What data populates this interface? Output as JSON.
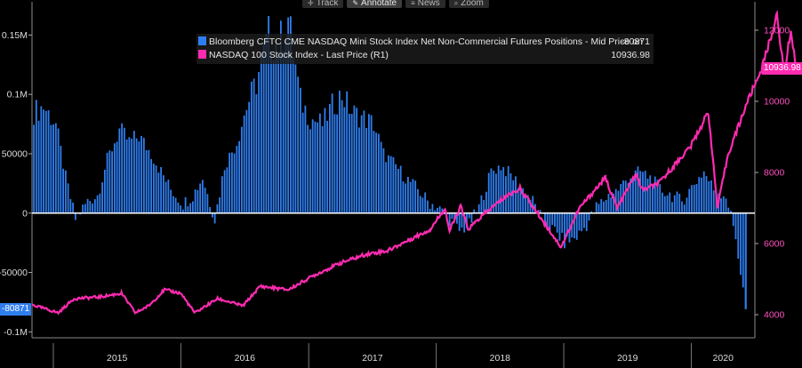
{
  "toolbar": {
    "items": [
      {
        "label": "Track",
        "icon": "crosshair-icon"
      },
      {
        "label": "Annotate",
        "icon": "pencil-icon",
        "active": true
      },
      {
        "label": "News",
        "icon": "news-icon"
      },
      {
        "label": "Zoom",
        "icon": "magnifier-icon"
      }
    ]
  },
  "colors": {
    "background": "#000000",
    "bars": "#2f7ef0",
    "line": "#ff2bb1",
    "zero_line": "#ffffff",
    "axis_text": "#dddddd",
    "right_axis_text": "#ff4fc0"
  },
  "legend": {
    "series1_label": "Bloomberg CFTC CME NASDAQ Mini Stock Index Net Non-Commercial Futures Positions - Mid Price on",
    "series1_value": "-80871",
    "series2_label": "NASDAQ 100 Stock Index - Last Price (R1)",
    "series2_value": "10936.98"
  },
  "tags": {
    "left_last": "-80871",
    "right_last": "10936.98"
  },
  "chart_data": {
    "type": "bar",
    "x_range": [
      "2014-11",
      "2020-07"
    ],
    "x_tick_labels": [
      "2015",
      "2016",
      "2017",
      "2018",
      "2019",
      "2020"
    ],
    "left_axis": {
      "ticks": [
        150000,
        100000,
        50000,
        0,
        -50000,
        -100000
      ],
      "tick_labels": [
        "0.15M",
        "0.1M",
        "50000",
        "0",
        "-50000",
        "-0.1M"
      ],
      "range": [
        -105000,
        178000
      ]
    },
    "right_axis": {
      "ticks": [
        12000,
        10000,
        8000,
        6000,
        4000
      ],
      "tick_labels": [
        "12000",
        "10000",
        "8000",
        "6000",
        "4000"
      ],
      "range": [
        3350,
        12800
      ]
    },
    "series": [
      {
        "name": "Bloomberg CFTC CME NASDAQ Mini Stock Index Net Non-Commercial Futures Positions - Mid Price on",
        "type": "bar",
        "axis": "left",
        "points": [
          [
            "2014-11-04",
            85000
          ],
          [
            "2014-12-02",
            90000
          ],
          [
            "2015-01-06",
            75000
          ],
          [
            "2015-02-03",
            30000
          ],
          [
            "2015-03-03",
            -5000
          ],
          [
            "2015-04-07",
            10000
          ],
          [
            "2015-05-05",
            15000
          ],
          [
            "2015-06-02",
            45000
          ],
          [
            "2015-07-07",
            70000
          ],
          [
            "2015-08-04",
            60000
          ],
          [
            "2015-09-01",
            65000
          ],
          [
            "2015-10-06",
            50000
          ],
          [
            "2015-11-03",
            35000
          ],
          [
            "2015-12-01",
            20000
          ],
          [
            "2016-01-05",
            8000
          ],
          [
            "2016-02-02",
            15000
          ],
          [
            "2016-03-01",
            30000
          ],
          [
            "2016-04-05",
            -5000
          ],
          [
            "2016-05-03",
            40000
          ],
          [
            "2016-06-07",
            60000
          ],
          [
            "2016-07-05",
            90000
          ],
          [
            "2016-08-02",
            110000
          ],
          [
            "2016-09-06",
            150000
          ],
          [
            "2016-10-04",
            140000
          ],
          [
            "2016-11-01",
            165000
          ],
          [
            "2016-12-06",
            95000
          ],
          [
            "2017-01-03",
            80000
          ],
          [
            "2017-02-07",
            75000
          ],
          [
            "2017-03-07",
            90000
          ],
          [
            "2017-04-04",
            100000
          ],
          [
            "2017-05-02",
            85000
          ],
          [
            "2017-06-06",
            80000
          ],
          [
            "2017-07-04",
            75000
          ],
          [
            "2017-08-01",
            50000
          ],
          [
            "2017-09-05",
            40000
          ],
          [
            "2017-10-03",
            30000
          ],
          [
            "2017-11-07",
            20000
          ],
          [
            "2017-12-05",
            10000
          ],
          [
            "2018-01-02",
            5000
          ],
          [
            "2018-02-06",
            -5000
          ],
          [
            "2018-03-06",
            -15000
          ],
          [
            "2018-04-03",
            -10000
          ],
          [
            "2018-05-01",
            5000
          ],
          [
            "2018-06-05",
            35000
          ],
          [
            "2018-07-03",
            40000
          ],
          [
            "2018-08-07",
            30000
          ],
          [
            "2018-09-04",
            20000
          ],
          [
            "2018-10-02",
            10000
          ],
          [
            "2018-11-06",
            -10000
          ],
          [
            "2018-12-04",
            -15000
          ],
          [
            "2019-01-01",
            -25000
          ],
          [
            "2019-02-05",
            -20000
          ],
          [
            "2019-03-05",
            -10000
          ],
          [
            "2019-04-02",
            5000
          ],
          [
            "2019-05-07",
            15000
          ],
          [
            "2019-06-04",
            20000
          ],
          [
            "2019-07-02",
            30000
          ],
          [
            "2019-08-06",
            35000
          ],
          [
            "2019-09-03",
            30000
          ],
          [
            "2019-10-01",
            20000
          ],
          [
            "2019-11-05",
            15000
          ],
          [
            "2019-12-03",
            10000
          ],
          [
            "2020-01-07",
            25000
          ],
          [
            "2020-02-04",
            35000
          ],
          [
            "2020-03-03",
            20000
          ],
          [
            "2020-04-07",
            15000
          ],
          [
            "2020-05-05",
            -20000
          ],
          [
            "2020-06-02",
            -80871
          ]
        ]
      },
      {
        "name": "NASDAQ 100 Stock Index - Last Price (R1)",
        "type": "line",
        "axis": "right",
        "points": [
          [
            "2014-11-01",
            4280
          ],
          [
            "2015-01-15",
            4050
          ],
          [
            "2015-03-01",
            4450
          ],
          [
            "2015-05-15",
            4500
          ],
          [
            "2015-07-15",
            4600
          ],
          [
            "2015-08-24",
            4050
          ],
          [
            "2015-10-01",
            4250
          ],
          [
            "2015-11-15",
            4700
          ],
          [
            "2016-01-01",
            4600
          ],
          [
            "2016-02-10",
            4050
          ],
          [
            "2016-04-15",
            4450
          ],
          [
            "2016-06-27",
            4250
          ],
          [
            "2016-08-15",
            4800
          ],
          [
            "2016-11-04",
            4700
          ],
          [
            "2017-01-15",
            5100
          ],
          [
            "2017-04-01",
            5450
          ],
          [
            "2017-06-15",
            5700
          ],
          [
            "2017-08-15",
            5800
          ],
          [
            "2017-10-15",
            6100
          ],
          [
            "2017-12-15",
            6400
          ],
          [
            "2018-01-26",
            7000
          ],
          [
            "2018-02-08",
            6350
          ],
          [
            "2018-03-12",
            7050
          ],
          [
            "2018-04-02",
            6400
          ],
          [
            "2018-05-15",
            6800
          ],
          [
            "2018-07-15",
            7300
          ],
          [
            "2018-08-29",
            7550
          ],
          [
            "2018-10-29",
            6700
          ],
          [
            "2018-12-24",
            5900
          ],
          [
            "2019-02-15",
            7000
          ],
          [
            "2019-04-30",
            7850
          ],
          [
            "2019-06-03",
            7000
          ],
          [
            "2019-07-26",
            7950
          ],
          [
            "2019-08-15",
            7500
          ],
          [
            "2019-10-01",
            7700
          ],
          [
            "2019-12-31",
            8750
          ],
          [
            "2020-02-19",
            9700
          ],
          [
            "2020-03-16",
            7000
          ],
          [
            "2020-04-15",
            8500
          ],
          [
            "2020-06-10",
            10000
          ],
          [
            "2020-07-20",
            10900
          ],
          [
            "2020-09-02",
            12400
          ],
          [
            "2020-09-23",
            10800
          ],
          [
            "2020-10-12",
            12000
          ],
          [
            "2020-10-27",
            10937
          ]
        ]
      }
    ]
  }
}
